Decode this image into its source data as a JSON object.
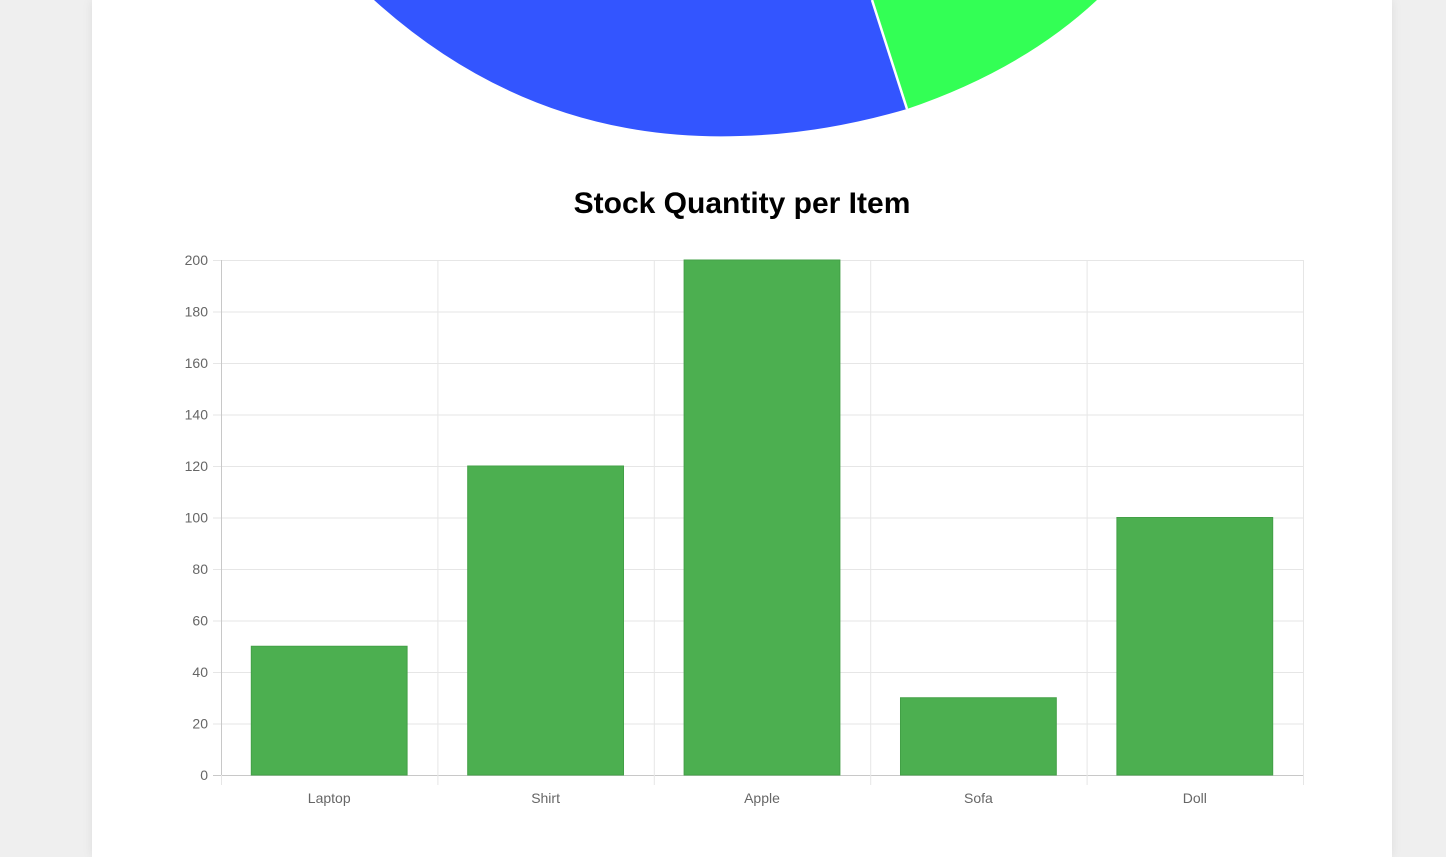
{
  "pie_fragment": {
    "colors": [
      "#3355ff",
      "#33ff55"
    ]
  },
  "chart_data": {
    "type": "bar",
    "title": "Stock Quantity per Item",
    "categories": [
      "Laptop",
      "Shirt",
      "Apple",
      "Sofa",
      "Doll"
    ],
    "values": [
      50,
      120,
      200,
      30,
      100
    ],
    "ylim": [
      0,
      200
    ],
    "yticks": [
      0,
      20,
      40,
      60,
      80,
      100,
      120,
      140,
      160,
      180,
      200
    ],
    "bar_color": "#4caf50",
    "bar_border_color": "#43a047",
    "grid": true,
    "xlabel": "",
    "ylabel": ""
  }
}
